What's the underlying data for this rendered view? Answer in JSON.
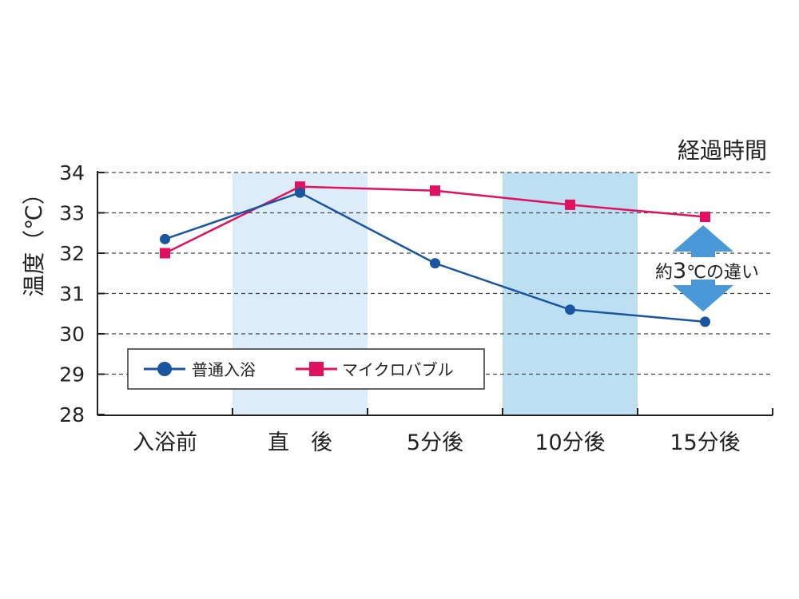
{
  "chart_data": {
    "type": "line",
    "title": "",
    "xlabel": "経過時間",
    "ylabel": "温度（℃）",
    "categories": [
      "入浴前",
      "直　後",
      "5分後",
      "10分後",
      "15分後"
    ],
    "ylim": [
      28,
      34
    ],
    "yticks": [
      28,
      29,
      30,
      31,
      32,
      33,
      34
    ],
    "grid": true,
    "legend_position": "bottom-left",
    "highlighted_categories": [
      "直　後",
      "10分後"
    ],
    "series": [
      {
        "name": "普通入浴",
        "marker": "circle",
        "color": "#1a56a0",
        "values": [
          32.35,
          33.5,
          31.75,
          30.6,
          30.3
        ]
      },
      {
        "name": "マイクロバブル",
        "marker": "square",
        "color": "#e0115f",
        "values": [
          32.0,
          33.65,
          33.55,
          33.2,
          32.9
        ]
      }
    ],
    "annotation": {
      "text_prefix": "約",
      "number": "3",
      "unit": "℃",
      "text_suffix": "の違い",
      "category": "15分後",
      "arrow_color": "#4a98d8"
    },
    "colors": {
      "axis": "#222222",
      "grid": "#444444",
      "band_light": "#dcecf8",
      "band_dark": "#bddff2"
    }
  }
}
